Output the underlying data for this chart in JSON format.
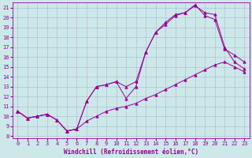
{
  "xlabel": "Windchill (Refroidissement éolien,°C)",
  "bg_color": "#cce8e8",
  "grid_color": "#b0b8d0",
  "line_color": "#990099",
  "xlim": [
    -0.5,
    23.5
  ],
  "ylim": [
    7.8,
    21.5
  ],
  "xticks": [
    0,
    1,
    2,
    3,
    4,
    5,
    6,
    7,
    8,
    9,
    10,
    11,
    12,
    13,
    14,
    15,
    16,
    17,
    18,
    19,
    20,
    21,
    22,
    23
  ],
  "yticks": [
    8,
    9,
    10,
    11,
    12,
    13,
    14,
    15,
    16,
    17,
    18,
    19,
    20,
    21
  ],
  "line1_x": [
    0,
    1,
    2,
    3,
    4,
    5,
    6,
    7,
    8,
    9,
    10,
    11,
    12,
    13,
    14,
    15,
    16,
    17,
    18,
    19,
    20,
    21,
    22,
    23
  ],
  "line1_y": [
    10.5,
    9.8,
    10.0,
    10.2,
    9.6,
    8.5,
    8.7,
    9.5,
    10.0,
    10.5,
    10.8,
    11.0,
    11.3,
    11.8,
    12.2,
    12.7,
    13.2,
    13.7,
    14.2,
    14.7,
    15.2,
    15.5,
    15.0,
    14.5
  ],
  "line2_x": [
    0,
    1,
    2,
    3,
    4,
    5,
    6,
    7,
    8,
    9,
    10,
    11,
    12,
    13,
    14,
    15,
    16,
    17,
    18,
    19,
    20,
    21,
    22,
    23
  ],
  "line2_y": [
    10.5,
    9.8,
    10.0,
    10.2,
    9.6,
    8.5,
    8.7,
    11.5,
    13.0,
    13.2,
    13.5,
    13.0,
    13.5,
    16.5,
    18.5,
    19.5,
    20.3,
    20.5,
    21.2,
    20.5,
    20.3,
    17.0,
    15.5,
    14.8
  ],
  "line3_x": [
    0,
    1,
    2,
    3,
    4,
    5,
    6,
    7,
    8,
    9,
    10,
    11,
    12,
    13,
    14,
    15,
    16,
    17,
    18,
    19,
    20,
    21,
    22,
    23
  ],
  "line3_y": [
    10.5,
    9.8,
    10.0,
    10.2,
    9.6,
    8.5,
    8.7,
    11.5,
    13.0,
    13.2,
    13.5,
    11.8,
    13.0,
    16.5,
    18.5,
    19.3,
    20.2,
    20.5,
    21.3,
    20.2,
    19.8,
    16.8,
    16.2,
    15.5
  ],
  "xlabel_fontsize": 5.5,
  "tick_fontsize": 5.0
}
